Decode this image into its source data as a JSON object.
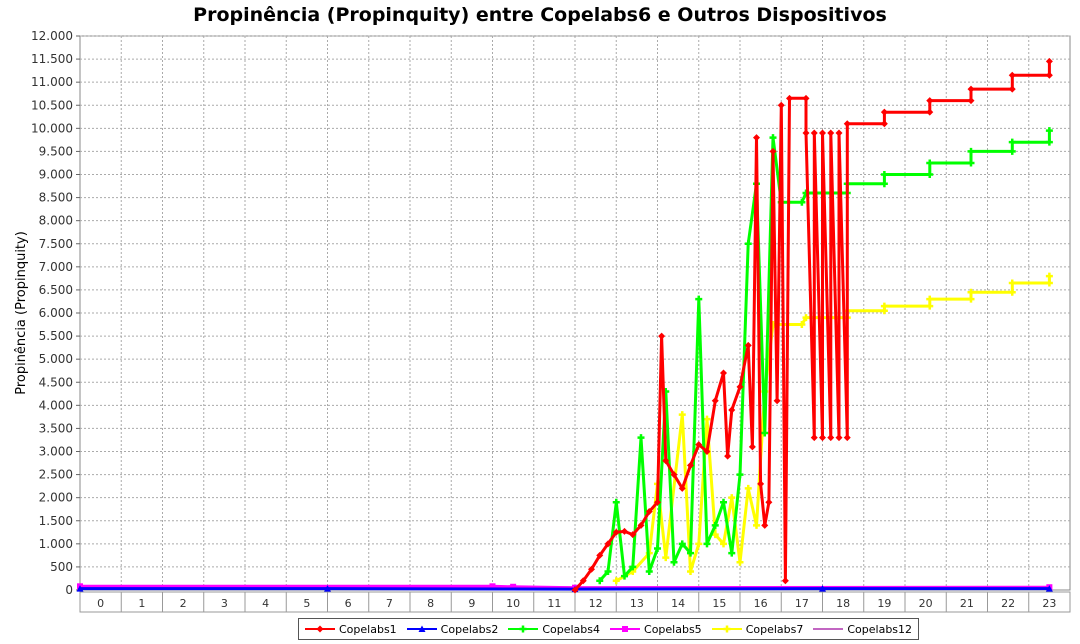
{
  "chart_data": {
    "type": "line",
    "title": "Propinência (Propinquity) entre Copelabs6 e Outros Dispositivos",
    "xlabel": "",
    "ylabel": "Propinência (Propinquity)",
    "x_categories": [
      "0",
      "1",
      "2",
      "3",
      "4",
      "5",
      "6",
      "7",
      "8",
      "9",
      "10",
      "11",
      "12",
      "13",
      "14",
      "15",
      "16",
      "17",
      "18",
      "19",
      "20",
      "21",
      "22",
      "23"
    ],
    "xlim": [
      0,
      24
    ],
    "ylim": [
      0,
      12000
    ],
    "y_ticks": [
      {
        "value": 0,
        "label": "0"
      },
      {
        "value": 500,
        "label": "500"
      },
      {
        "value": 1000,
        "label": "1.000"
      },
      {
        "value": 1500,
        "label": "1.500"
      },
      {
        "value": 2000,
        "label": "2.000"
      },
      {
        "value": 2500,
        "label": "2.500"
      },
      {
        "value": 3000,
        "label": "3.000"
      },
      {
        "value": 3500,
        "label": "3.500"
      },
      {
        "value": 4000,
        "label": "4.000"
      },
      {
        "value": 4500,
        "label": "4.500"
      },
      {
        "value": 5000,
        "label": "5.000"
      },
      {
        "value": 5500,
        "label": "5.500"
      },
      {
        "value": 6000,
        "label": "6.000"
      },
      {
        "value": 6500,
        "label": "6.500"
      },
      {
        "value": 7000,
        "label": "7.000"
      },
      {
        "value": 7500,
        "label": "7.500"
      },
      {
        "value": 8000,
        "label": "8.000"
      },
      {
        "value": 8500,
        "label": "8.500"
      },
      {
        "value": 9000,
        "label": "9.000"
      },
      {
        "value": 9500,
        "label": "9.500"
      },
      {
        "value": 10000,
        "label": "10.000"
      },
      {
        "value": 10500,
        "label": "10.500"
      },
      {
        "value": 11000,
        "label": "11.000"
      },
      {
        "value": 11500,
        "label": "11.500"
      },
      {
        "value": 12000,
        "label": "12.000"
      }
    ],
    "grid": true,
    "legend_position": "bottom",
    "series": [
      {
        "name": "Copelabs1",
        "color": "#ff0000",
        "marker": "diamond",
        "points": [
          [
            12.0,
            0
          ],
          [
            12.2,
            200
          ],
          [
            12.4,
            450
          ],
          [
            12.6,
            750
          ],
          [
            12.8,
            1000
          ],
          [
            13.0,
            1250
          ],
          [
            13.2,
            1270
          ],
          [
            13.4,
            1200
          ],
          [
            13.6,
            1400
          ],
          [
            13.8,
            1700
          ],
          [
            14.0,
            1900
          ],
          [
            14.1,
            5500
          ],
          [
            14.2,
            2800
          ],
          [
            14.4,
            2500
          ],
          [
            14.6,
            2200
          ],
          [
            14.8,
            2700
          ],
          [
            15.0,
            3150
          ],
          [
            15.2,
            3000
          ],
          [
            15.4,
            4100
          ],
          [
            15.6,
            4700
          ],
          [
            15.7,
            2900
          ],
          [
            15.8,
            3900
          ],
          [
            16.0,
            4400
          ],
          [
            16.2,
            5300
          ],
          [
            16.3,
            3100
          ],
          [
            16.4,
            9800
          ],
          [
            16.5,
            2300
          ],
          [
            16.6,
            1400
          ],
          [
            16.7,
            1900
          ],
          [
            16.8,
            9500
          ],
          [
            16.9,
            4100
          ],
          [
            17.0,
            10500
          ],
          [
            17.1,
            200
          ],
          [
            17.2,
            10650
          ],
          [
            17.6,
            10650
          ],
          [
            17.6,
            9900
          ],
          [
            17.8,
            3300
          ],
          [
            17.8,
            9900
          ],
          [
            18.0,
            3300
          ],
          [
            18.0,
            9900
          ],
          [
            18.2,
            3300
          ],
          [
            18.2,
            9900
          ],
          [
            18.4,
            3300
          ],
          [
            18.4,
            9900
          ],
          [
            18.6,
            3300
          ],
          [
            18.6,
            10100
          ],
          [
            19.5,
            10100
          ],
          [
            19.5,
            10350
          ],
          [
            20.6,
            10350
          ],
          [
            20.6,
            10600
          ],
          [
            21.6,
            10600
          ],
          [
            21.6,
            10850
          ],
          [
            22.6,
            10850
          ],
          [
            22.6,
            11150
          ],
          [
            23.5,
            11150
          ],
          [
            23.5,
            11450
          ]
        ]
      },
      {
        "name": "Copelabs2",
        "color": "#0000ff",
        "marker": "triangle",
        "points": [
          [
            0,
            30
          ],
          [
            6,
            30
          ],
          [
            12,
            20
          ],
          [
            18,
            30
          ],
          [
            23.5,
            30
          ]
        ]
      },
      {
        "name": "Copelabs4",
        "color": "#00ff00",
        "marker": "cross",
        "points": [
          [
            12.6,
            200
          ],
          [
            12.8,
            400
          ],
          [
            13.0,
            1900
          ],
          [
            13.2,
            300
          ],
          [
            13.4,
            500
          ],
          [
            13.6,
            3300
          ],
          [
            13.8,
            400
          ],
          [
            14.0,
            900
          ],
          [
            14.2,
            4300
          ],
          [
            14.4,
            600
          ],
          [
            14.6,
            1000
          ],
          [
            14.8,
            800
          ],
          [
            15.0,
            6300
          ],
          [
            15.2,
            1000
          ],
          [
            15.4,
            1400
          ],
          [
            15.6,
            1900
          ],
          [
            15.8,
            800
          ],
          [
            16.0,
            2500
          ],
          [
            16.2,
            7500
          ],
          [
            16.4,
            8800
          ],
          [
            16.6,
            3400
          ],
          [
            16.8,
            9800
          ],
          [
            17.0,
            8400
          ],
          [
            17.5,
            8400
          ],
          [
            17.6,
            8600
          ],
          [
            18.6,
            8600
          ],
          [
            18.6,
            8800
          ],
          [
            19.5,
            8800
          ],
          [
            19.5,
            9000
          ],
          [
            20.6,
            9000
          ],
          [
            20.6,
            9250
          ],
          [
            21.6,
            9250
          ],
          [
            21.6,
            9500
          ],
          [
            22.6,
            9500
          ],
          [
            22.6,
            9700
          ],
          [
            23.5,
            9700
          ],
          [
            23.5,
            9950
          ]
        ]
      },
      {
        "name": "Copelabs5",
        "color": "#ff00ff",
        "marker": "square",
        "points": [
          [
            0,
            80
          ],
          [
            10,
            80
          ],
          [
            10.5,
            70
          ],
          [
            12,
            50
          ],
          [
            23.5,
            60
          ]
        ]
      },
      {
        "name": "Copelabs7",
        "color": "#ffff00",
        "marker": "cross",
        "points": [
          [
            13.0,
            200
          ],
          [
            13.4,
            400
          ],
          [
            13.8,
            800
          ],
          [
            14.0,
            2300
          ],
          [
            14.2,
            700
          ],
          [
            14.6,
            3800
          ],
          [
            14.8,
            400
          ],
          [
            15.0,
            1000
          ],
          [
            15.2,
            3700
          ],
          [
            15.4,
            1200
          ],
          [
            15.6,
            1000
          ],
          [
            15.8,
            2000
          ],
          [
            16.0,
            600
          ],
          [
            16.2,
            2200
          ],
          [
            16.4,
            1400
          ],
          [
            16.6,
            4300
          ],
          [
            16.8,
            5750
          ],
          [
            17.5,
            5750
          ],
          [
            17.6,
            5900
          ],
          [
            18.6,
            5900
          ],
          [
            18.6,
            6050
          ],
          [
            19.5,
            6050
          ],
          [
            19.5,
            6150
          ],
          [
            20.6,
            6150
          ],
          [
            20.6,
            6300
          ],
          [
            21.6,
            6300
          ],
          [
            21.6,
            6450
          ],
          [
            22.6,
            6450
          ],
          [
            22.6,
            6650
          ],
          [
            23.5,
            6650
          ],
          [
            23.5,
            6800
          ]
        ]
      },
      {
        "name": "Copelabs12",
        "color": "#c266c2",
        "marker": "line",
        "points": [
          [
            0,
            60
          ],
          [
            23.5,
            60
          ]
        ]
      }
    ]
  }
}
